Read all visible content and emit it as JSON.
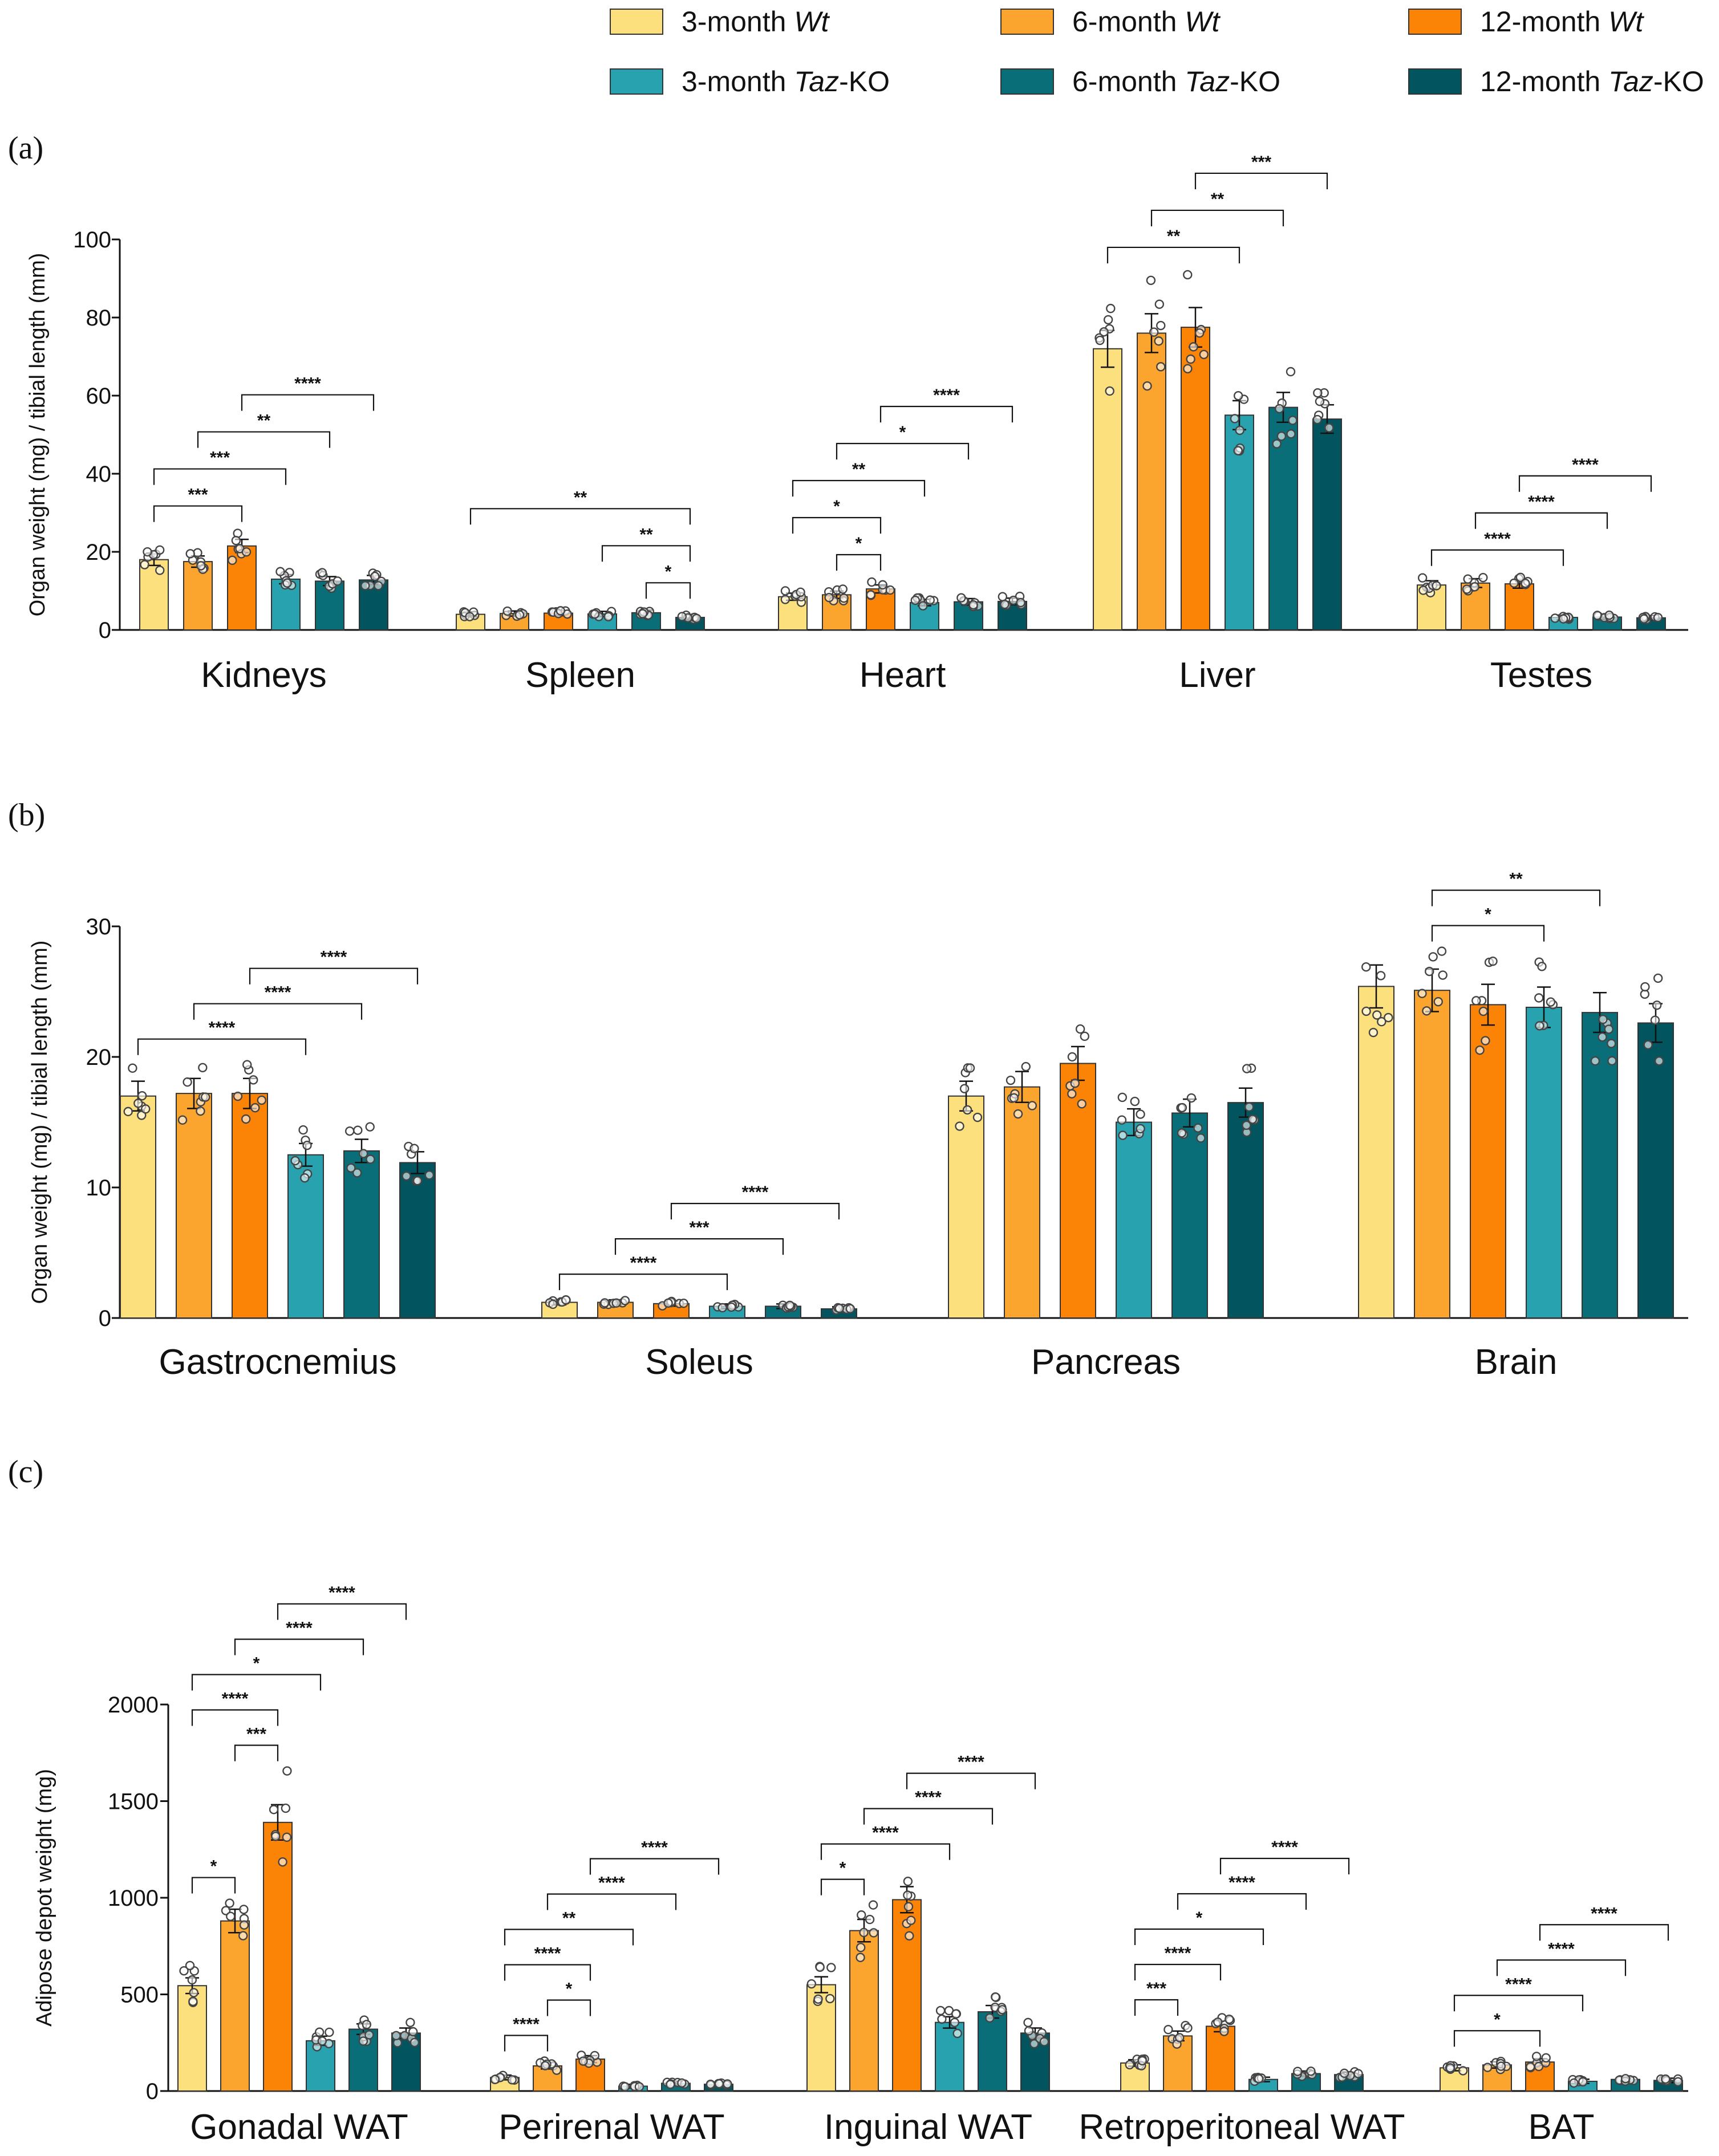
{
  "colors": {
    "3m_wt": "#FDE07E",
    "6m_wt": "#FBA52F",
    "12m_wt": "#FB8407",
    "3m_ko": "#27A2AE",
    "6m_ko": "#0A6E78",
    "12m_ko": "#02545E"
  },
  "legend": [
    {
      "key": "3m_wt",
      "prefix": "3-month ",
      "italic": "Wt",
      "suffix": ""
    },
    {
      "key": "6m_wt",
      "prefix": "6-month ",
      "italic": "Wt",
      "suffix": ""
    },
    {
      "key": "12m_wt",
      "prefix": "12-month ",
      "italic": "Wt",
      "suffix": ""
    },
    {
      "key": "3m_ko",
      "prefix": "3-month ",
      "italic": "Taz",
      "suffix": "-KO"
    },
    {
      "key": "6m_ko",
      "prefix": "6-month ",
      "italic": "Taz",
      "suffix": "-KO"
    },
    {
      "key": "12m_ko",
      "prefix": "12-month ",
      "italic": "Taz",
      "suffix": "-KO"
    }
  ],
  "chart_data": [
    {
      "panel": "(a)",
      "type": "bar",
      "ylabel": "Organ weight (mg) / tibial length (mm)",
      "ylim": [
        0,
        100
      ],
      "yticks": [
        0,
        20,
        40,
        60,
        80,
        100
      ],
      "series_keys": [
        "3m_wt",
        "6m_wt",
        "12m_wt",
        "3m_ko",
        "6m_ko",
        "12m_ko"
      ],
      "groups": [
        {
          "name": "Kidneys",
          "values": [
            18,
            17.5,
            21.5,
            13,
            12.5,
            12.8
          ],
          "sig": [
            {
              "a": 0,
              "b": 2,
              "label": "***"
            },
            {
              "a": 0,
              "b": 3,
              "label": "***"
            },
            {
              "a": 1,
              "b": 4,
              "label": "**"
            },
            {
              "a": 2,
              "b": 5,
              "label": "****"
            }
          ]
        },
        {
          "name": "Spleen",
          "values": [
            4,
            4.2,
            4.3,
            4.1,
            4.4,
            3.2
          ],
          "sig": [
            {
              "a": 4,
              "b": 5,
              "label": "*"
            },
            {
              "a": 3,
              "b": 5,
              "label": "**"
            },
            {
              "a": 0,
              "b": 5,
              "label": "**"
            }
          ]
        },
        {
          "name": "Heart",
          "values": [
            8.5,
            9,
            10.5,
            7,
            7.2,
            7.3
          ],
          "sig": [
            {
              "a": 1,
              "b": 2,
              "label": "*"
            },
            {
              "a": 0,
              "b": 2,
              "label": "*"
            },
            {
              "a": 0,
              "b": 3,
              "label": "**"
            },
            {
              "a": 1,
              "b": 4,
              "label": "*"
            },
            {
              "a": 2,
              "b": 5,
              "label": "****"
            }
          ]
        },
        {
          "name": "Liver",
          "values": [
            72,
            76,
            77.5,
            55,
            57,
            54
          ],
          "sig": [
            {
              "a": 0,
              "b": 3,
              "label": "**"
            },
            {
              "a": 1,
              "b": 4,
              "label": "**"
            },
            {
              "a": 2,
              "b": 5,
              "label": "***"
            }
          ]
        },
        {
          "name": "Testes",
          "values": [
            11.5,
            12,
            11.8,
            3.2,
            3.3,
            3.1
          ],
          "sig": [
            {
              "a": 0,
              "b": 3,
              "label": "****"
            },
            {
              "a": 1,
              "b": 4,
              "label": "****"
            },
            {
              "a": 2,
              "b": 5,
              "label": "****"
            }
          ]
        }
      ]
    },
    {
      "panel": "(b)",
      "type": "bar",
      "ylabel": "Organ weight (mg) / tibial length (mm)",
      "ylim": [
        0,
        30
      ],
      "yticks": [
        0,
        10,
        20,
        30
      ],
      "series_keys": [
        "3m_wt",
        "6m_wt",
        "12m_wt",
        "3m_ko",
        "6m_ko",
        "12m_ko"
      ],
      "groups": [
        {
          "name": "Gastrocnemius",
          "values": [
            17,
            17.2,
            17.2,
            12.5,
            12.8,
            11.9
          ],
          "sig": [
            {
              "a": 0,
              "b": 3,
              "label": "****"
            },
            {
              "a": 1,
              "b": 4,
              "label": "****"
            },
            {
              "a": 2,
              "b": 5,
              "label": "****"
            }
          ]
        },
        {
          "name": "Soleus",
          "values": [
            1.2,
            1.2,
            1.1,
            0.9,
            0.9,
            0.7
          ],
          "sig": [
            {
              "a": 0,
              "b": 3,
              "label": "****"
            },
            {
              "a": 1,
              "b": 4,
              "label": "***"
            },
            {
              "a": 2,
              "b": 5,
              "label": "****"
            }
          ]
        },
        {
          "name": "Pancreas",
          "values": [
            17,
            17.7,
            19.5,
            15,
            15.7,
            16.5
          ],
          "sig": []
        },
        {
          "name": "Brain",
          "values": [
            25.4,
            25.1,
            24,
            23.8,
            23.4,
            22.6
          ],
          "sig": [
            {
              "a": 1,
              "b": 3,
              "label": "*"
            },
            {
              "a": 1,
              "b": 4,
              "label": "**"
            }
          ]
        }
      ]
    },
    {
      "panel": "(c)",
      "type": "bar",
      "ylabel": "Adipose depot weight (mg)",
      "ylim": [
        0,
        2000
      ],
      "yticks": [
        0,
        500,
        1000,
        1500,
        2000
      ],
      "series_keys": [
        "3m_wt",
        "6m_wt",
        "12m_wt",
        "3m_ko",
        "6m_ko",
        "12m_ko"
      ],
      "groups": [
        {
          "name": "Gonadal WAT",
          "values": [
            545,
            880,
            1390,
            260,
            320,
            300
          ],
          "sig": [
            {
              "a": 0,
              "b": 1,
              "label": "*"
            },
            {
              "a": 1,
              "b": 2,
              "label": "***"
            },
            {
              "a": 0,
              "b": 2,
              "label": "****"
            },
            {
              "a": 0,
              "b": 3,
              "label": "*"
            },
            {
              "a": 1,
              "b": 4,
              "label": "****"
            },
            {
              "a": 2,
              "b": 5,
              "label": "****"
            }
          ]
        },
        {
          "name": "Perirenal WAT",
          "values": [
            70,
            130,
            165,
            25,
            40,
            35
          ],
          "sig": [
            {
              "a": 0,
              "b": 1,
              "label": "****"
            },
            {
              "a": 1,
              "b": 2,
              "label": "*"
            },
            {
              "a": 0,
              "b": 2,
              "label": "****"
            },
            {
              "a": 0,
              "b": 3,
              "label": "**"
            },
            {
              "a": 1,
              "b": 4,
              "label": "****"
            },
            {
              "a": 2,
              "b": 5,
              "label": "****"
            }
          ]
        },
        {
          "name": "Inguinal WAT",
          "values": [
            550,
            830,
            990,
            355,
            410,
            300
          ],
          "sig": [
            {
              "a": 0,
              "b": 1,
              "label": "*"
            },
            {
              "a": 0,
              "b": 3,
              "label": "****"
            },
            {
              "a": 1,
              "b": 4,
              "label": "****"
            },
            {
              "a": 2,
              "b": 5,
              "label": "****"
            }
          ]
        },
        {
          "name": "Retroperitoneal WAT",
          "values": [
            145,
            285,
            335,
            60,
            90,
            85
          ],
          "sig": [
            {
              "a": 0,
              "b": 1,
              "label": "***"
            },
            {
              "a": 0,
              "b": 2,
              "label": "****"
            },
            {
              "a": 0,
              "b": 3,
              "label": "*"
            },
            {
              "a": 1,
              "b": 4,
              "label": "****"
            },
            {
              "a": 2,
              "b": 5,
              "label": "****"
            }
          ]
        },
        {
          "name": "BAT",
          "values": [
            120,
            135,
            150,
            50,
            60,
            55
          ],
          "sig": [
            {
              "a": 0,
              "b": 2,
              "label": "*"
            },
            {
              "a": 0,
              "b": 3,
              "label": "****"
            },
            {
              "a": 1,
              "b": 4,
              "label": "****"
            },
            {
              "a": 2,
              "b": 5,
              "label": "****"
            }
          ]
        }
      ]
    }
  ]
}
